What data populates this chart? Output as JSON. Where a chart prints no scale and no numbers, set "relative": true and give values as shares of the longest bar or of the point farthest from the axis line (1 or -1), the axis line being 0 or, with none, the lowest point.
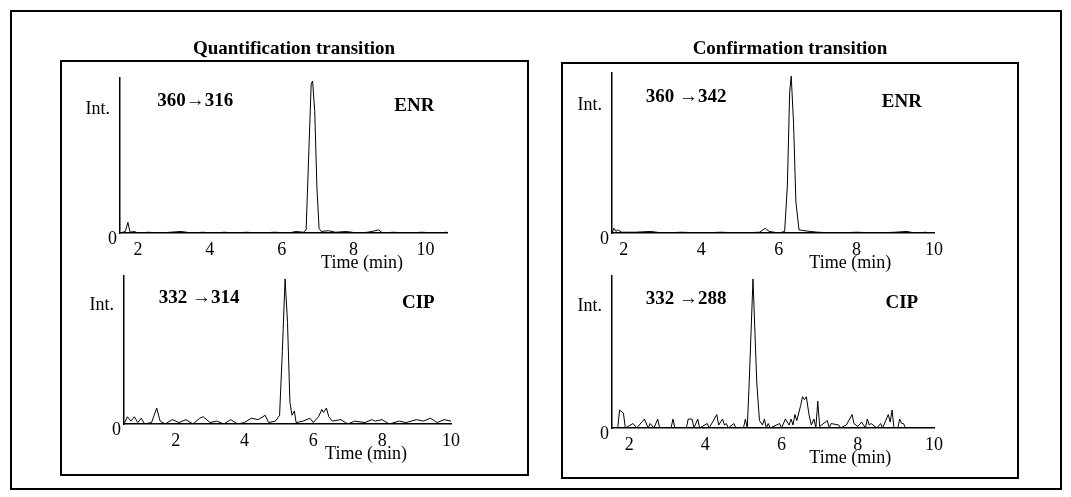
{
  "chart_data": [
    {
      "type": "line",
      "title": "Quantification transition",
      "xlabel": "Time (min)",
      "ylabel": "Int.",
      "relative": true,
      "marker": "none",
      "xlim": [
        1.5,
        10.6
      ],
      "xticks": [
        2,
        4,
        6,
        8,
        10
      ],
      "annotations": [
        "360→316",
        "ENR",
        {
          "text": "0",
          "x": 1.5,
          "y": 0
        }
      ],
      "series": [
        {
          "color": "#000000",
          "x": [
            1.5,
            1.65,
            1.72,
            1.78,
            1.9,
            2.0,
            2.3,
            2.6,
            2.9,
            3.2,
            3.5,
            3.8,
            4.1,
            4.4,
            4.7,
            5.0,
            5.4,
            5.8,
            6.2,
            6.4,
            6.6,
            6.68,
            6.75,
            6.82,
            6.86,
            6.92,
            6.98,
            7.04,
            7.1,
            7.3,
            7.5,
            7.8,
            8.1,
            8.4,
            8.7,
            8.8,
            9.1,
            9.5,
            9.9,
            10.3,
            10.6
          ],
          "values": [
            0,
            0.01,
            0.07,
            0.005,
            0.01,
            0,
            0.005,
            0,
            0.005,
            0.01,
            0,
            0.005,
            0,
            0.005,
            0,
            0.005,
            0,
            0.005,
            0,
            0.01,
            0.005,
            0.02,
            0.5,
            0.98,
            1,
            0.8,
            0.3,
            0.03,
            0.01,
            0.015,
            0.005,
            0.01,
            0,
            0.005,
            0.02,
            0,
            0.005,
            0,
            0.005,
            0,
            0.005
          ]
        }
      ]
    },
    {
      "type": "line",
      "xlabel": "Time (min)",
      "ylabel": "Int.",
      "relative": true,
      "marker": "none",
      "xlim": [
        0.5,
        10
      ],
      "xticks": [
        2,
        4,
        6,
        8,
        10
      ],
      "annotations": [
        "332 →314",
        "CIP",
        {
          "text": "0",
          "x": 0.5,
          "y": 0
        }
      ],
      "series": [
        {
          "color": "#000000",
          "x": [
            0.5,
            0.6,
            0.7,
            0.8,
            0.9,
            1.0,
            1.1,
            1.3,
            1.45,
            1.55,
            1.7,
            1.9,
            2.1,
            2.3,
            2.5,
            2.7,
            2.8,
            3.0,
            3.2,
            3.4,
            3.6,
            3.8,
            4.0,
            4.2,
            4.4,
            4.6,
            4.7,
            4.9,
            5.02,
            5.1,
            5.18,
            5.25,
            5.32,
            5.38,
            5.45,
            5.5,
            5.7,
            5.9,
            6.0,
            6.15,
            6.25,
            6.3,
            6.38,
            6.45,
            6.55,
            6.8,
            7.0,
            7.2,
            7.5,
            7.7,
            7.8,
            8.0,
            8.2,
            8.5,
            8.7,
            9.0,
            9.2,
            9.4,
            9.6,
            9.8,
            10.0
          ],
          "values": [
            0,
            0.05,
            0.02,
            0.05,
            0.01,
            0.04,
            0,
            0.01,
            0.11,
            0.02,
            0,
            0.03,
            0.01,
            0.03,
            0,
            0.04,
            0.05,
            0.01,
            0.02,
            0,
            0.03,
            0,
            0.01,
            0.04,
            0.03,
            0.06,
            0.01,
            0.02,
            0.06,
            0.5,
            1,
            0.7,
            0.15,
            0.06,
            0.09,
            0.01,
            0.02,
            0.04,
            0.01,
            0.05,
            0.1,
            0.08,
            0.11,
            0.05,
            0.02,
            0.03,
            0,
            0.02,
            0.01,
            0.03,
            0.02,
            0.03,
            0,
            0.02,
            0.01,
            0.03,
            0.02,
            0.04,
            0.01,
            0.03,
            0.02
          ]
        }
      ]
    },
    {
      "type": "line",
      "title": "Confirmation transition",
      "xlabel": "Time (min)",
      "ylabel": "Int.",
      "relative": true,
      "marker": "none",
      "xlim": [
        1.7,
        10
      ],
      "xticks": [
        2,
        4,
        6,
        8,
        10
      ],
      "annotations": [
        "360 →342",
        "ENR",
        {
          "text": "0",
          "x": 1.7,
          "y": 0
        }
      ],
      "series": [
        {
          "color": "#000000",
          "x": [
            1.7,
            1.75,
            1.8,
            1.85,
            1.95,
            2.3,
            2.7,
            3.0,
            3.5,
            4.0,
            4.5,
            5.0,
            5.5,
            5.65,
            5.75,
            6.0,
            6.15,
            6.22,
            6.28,
            6.32,
            6.38,
            6.44,
            6.52,
            6.65,
            6.8,
            7.0,
            7.5,
            8.0,
            8.5,
            9.0,
            9.3,
            9.5,
            9.8
          ],
          "values": [
            0,
            0.03,
            0.01,
            0.02,
            0.005,
            0.005,
            0.01,
            0,
            0.005,
            0,
            0.005,
            0,
            0.005,
            0.03,
            0.01,
            0,
            0.01,
            0.3,
            0.9,
            1,
            0.7,
            0.2,
            0.02,
            0.015,
            0.01,
            0.005,
            0,
            0.005,
            0,
            0.005,
            0.01,
            0,
            0.005
          ]
        }
      ]
    },
    {
      "type": "line",
      "xlabel": "Time (min)",
      "ylabel": "Int.",
      "relative": true,
      "marker": "none",
      "xlim": [
        1.55,
        10
      ],
      "xticks": [
        2,
        4,
        6,
        8,
        10
      ],
      "annotations": [
        "332 →288",
        "CIP",
        {
          "text": "0",
          "x": 1.55,
          "y": 0
        }
      ],
      "series": [
        {
          "color": "#000000",
          "x": [
            1.55,
            1.7,
            1.75,
            1.85,
            1.9,
            2.1,
            2.2,
            2.4,
            2.5,
            2.55,
            2.65,
            2.75,
            2.8,
            3.1,
            3.15,
            3.2,
            3.5,
            3.55,
            3.65,
            3.7,
            3.8,
            3.85,
            4.05,
            4.1,
            4.3,
            4.35,
            4.45,
            4.5,
            4.55,
            4.6,
            4.75,
            4.8,
            5.0,
            5.05,
            5.1,
            5.15,
            5.25,
            5.35,
            5.42,
            5.5,
            5.55,
            5.6,
            5.65,
            5.7,
            5.95,
            6.0,
            6.1,
            6.2,
            6.25,
            6.3,
            6.35,
            6.4,
            6.5,
            6.55,
            6.6,
            6.65,
            6.72,
            6.78,
            6.85,
            6.9,
            6.95,
            7.0,
            7.2,
            7.25,
            7.3,
            7.5,
            7.55,
            7.7,
            7.85,
            7.9,
            8.0,
            8.1,
            8.2,
            8.25,
            8.3,
            8.35,
            8.5,
            8.6,
            8.65,
            8.8,
            8.85,
            8.9,
            8.95,
            9.05,
            9.1,
            9.15,
            9.2,
            9.25
          ],
          "values": [
            0,
            0,
            0.12,
            0.1,
            0,
            0.03,
            0,
            0.06,
            0,
            0.03,
            0,
            0.06,
            0,
            0,
            0.06,
            0,
            0,
            0.06,
            0.06,
            0,
            0.06,
            0,
            0.03,
            0,
            0.09,
            0.02,
            0.06,
            0.02,
            0.03,
            0,
            0.03,
            0,
            0,
            0.06,
            0,
            0.3,
            1,
            0.3,
            0.05,
            0.02,
            0.06,
            0,
            0.03,
            0,
            0.03,
            0,
            0.06,
            0.02,
            0.06,
            0.02,
            0.09,
            0.05,
            0.15,
            0.21,
            0.19,
            0.21,
            0.09,
            0.02,
            0.06,
            0,
            0.18,
            0.01,
            0.05,
            0,
            0.03,
            0.02,
            0,
            0.02,
            0.09,
            0.03,
            0.01,
            0.04,
            0,
            0.06,
            0.02,
            0.03,
            0,
            0.03,
            0,
            0.09,
            0.04,
            0.12,
            0,
            0,
            0.06,
            0.03,
            0.03,
            0
          ]
        }
      ]
    }
  ]
}
